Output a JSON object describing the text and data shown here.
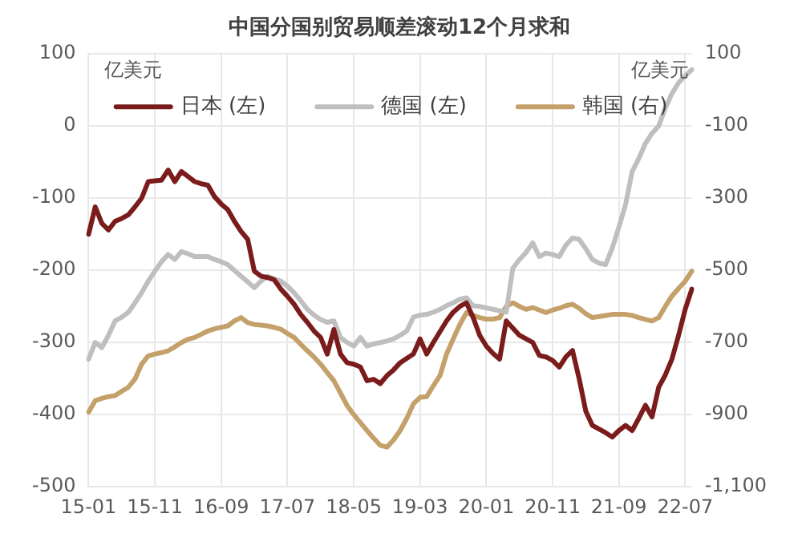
{
  "chart_data": {
    "type": "line",
    "title": "中国分国别贸易顺差滚动12个月求和",
    "ylabel": "亿美元",
    "y2label": "亿美元",
    "categories": [
      "15-01",
      null,
      null,
      null,
      null,
      null,
      null,
      null,
      null,
      null,
      "15-11",
      null,
      null,
      null,
      null,
      null,
      null,
      null,
      null,
      null,
      "16-09",
      null,
      null,
      null,
      null,
      null,
      null,
      null,
      null,
      null,
      "17-07",
      null,
      null,
      null,
      null,
      null,
      null,
      null,
      null,
      null,
      "18-05",
      null,
      null,
      null,
      null,
      null,
      null,
      null,
      null,
      null,
      "19-03",
      null,
      null,
      null,
      null,
      null,
      null,
      null,
      null,
      null,
      "20-01",
      null,
      null,
      null,
      null,
      null,
      null,
      null,
      null,
      null,
      "20-11",
      null,
      null,
      null,
      null,
      null,
      null,
      null,
      null,
      null,
      "21-09",
      null,
      null,
      null,
      null,
      null,
      null,
      null,
      null,
      null,
      "22-07",
      null
    ],
    "series": [
      {
        "name": "日本 (左)",
        "color": "#7b1c1c",
        "values": [
          -150,
          -112,
          -135,
          -144,
          -132,
          -128,
          -123,
          -112,
          -100,
          -77,
          -76,
          -75,
          -61,
          -77,
          -63,
          -70,
          -77,
          -80,
          -82,
          -98,
          -108,
          -116,
          -132,
          -146,
          -157,
          -201,
          -208,
          -210,
          -213,
          -226,
          -236,
          -247,
          -261,
          -272,
          -284,
          -293,
          -316,
          -282,
          -316,
          -328,
          -330,
          -334,
          -353,
          -351,
          -357,
          -346,
          -338,
          -328,
          -322,
          -316,
          -295,
          -316,
          -300,
          -285,
          -270,
          -258,
          -250,
          -245,
          -265,
          -290,
          -305,
          -315,
          -323,
          -270,
          -280,
          -290,
          -295,
          -300,
          -318,
          -320,
          -325,
          -334,
          -320,
          -311,
          -350,
          -395,
          -415,
          -420,
          -425,
          -431,
          -422,
          -415,
          -422,
          -405,
          -387,
          -403,
          -362,
          -345,
          -323,
          -290,
          -254,
          -226
        ]
      },
      {
        "name": "德国 (左)",
        "color": "#bfbfbf",
        "values": [
          -323,
          -300,
          -307,
          -290,
          -270,
          -265,
          -258,
          -245,
          -231,
          -215,
          -201,
          -188,
          -178,
          -185,
          -174,
          -177,
          -181,
          -181,
          -181,
          -185,
          -188,
          -192,
          -200,
          -208,
          -216,
          -224,
          -215,
          -208,
          -212,
          -215,
          -222,
          -231,
          -242,
          -254,
          -262,
          -268,
          -272,
          -270,
          -293,
          -300,
          -305,
          -293,
          -305,
          -302,
          -300,
          -298,
          -295,
          -290,
          -284,
          -265,
          -262,
          -261,
          -258,
          -254,
          -249,
          -245,
          -240,
          -238,
          -249,
          -250,
          -252,
          -254,
          -256,
          -258,
          -197,
          -185,
          -175,
          -162,
          -181,
          -176,
          -178,
          -181,
          -165,
          -155,
          -157,
          -170,
          -185,
          -190,
          -192,
          -169,
          -140,
          -109,
          -63,
          -45,
          -24,
          -10,
          0,
          25,
          45,
          60,
          70,
          78
        ]
      },
      {
        "name": "韩国 (右)",
        "color": "#c4a06a",
        "axis": "y2",
        "values": [
          -893,
          -861,
          -855,
          -850,
          -847,
          -835,
          -824,
          -801,
          -760,
          -737,
          -732,
          -728,
          -723,
          -712,
          -700,
          -691,
          -686,
          -677,
          -668,
          -662,
          -658,
          -654,
          -640,
          -631,
          -645,
          -650,
          -652,
          -654,
          -658,
          -663,
          -675,
          -686,
          -705,
          -723,
          -740,
          -760,
          -783,
          -806,
          -840,
          -875,
          -900,
          -922,
          -944,
          -965,
          -985,
          -990,
          -970,
          -944,
          -910,
          -870,
          -852,
          -850,
          -820,
          -792,
          -732,
          -690,
          -650,
          -617,
          -625,
          -631,
          -635,
          -635,
          -631,
          -600,
          -590,
          -600,
          -608,
          -603,
          -610,
          -617,
          -610,
          -605,
          -598,
          -594,
          -605,
          -620,
          -631,
          -628,
          -625,
          -622,
          -622,
          -622,
          -625,
          -631,
          -636,
          -640,
          -631,
          -600,
          -571,
          -550,
          -530,
          -502
        ]
      }
    ],
    "ylim": [
      -500,
      100
    ],
    "yticks": [
      -500,
      -400,
      -300,
      -200,
      -100,
      0,
      100
    ],
    "y2lim": [
      -1100,
      100
    ],
    "y2ticks": [
      {
        "value": -1100,
        "label": "-1,100"
      },
      -900,
      -700,
      -500,
      -300,
      -100,
      100
    ],
    "grid": true,
    "legend": "top"
  }
}
